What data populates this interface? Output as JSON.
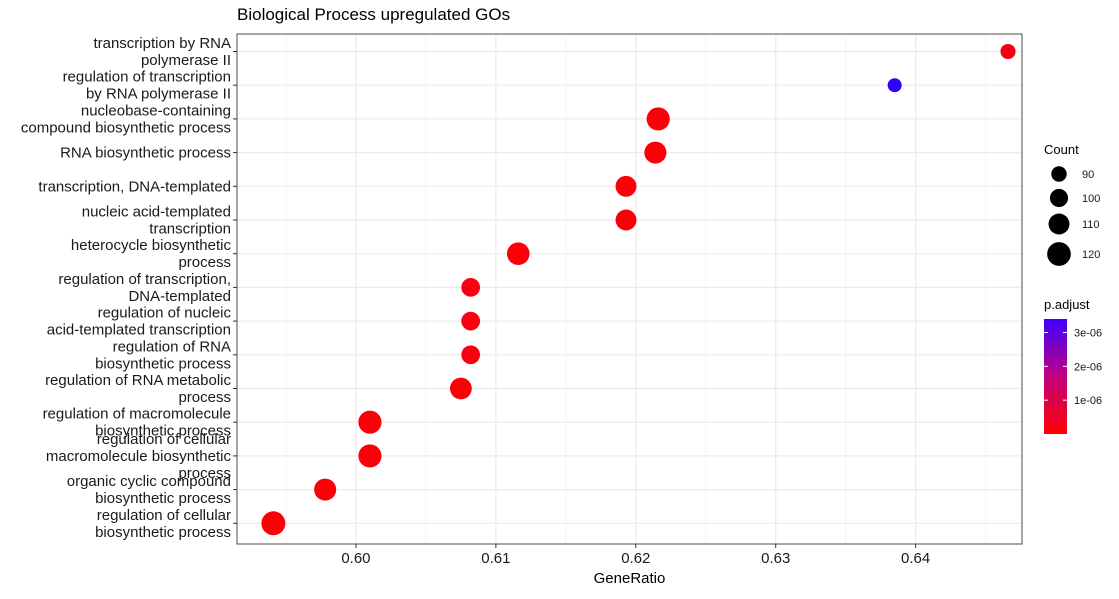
{
  "chart_data": {
    "type": "scatter",
    "title": "Biological Process upregulated GOs",
    "xlabel": "GeneRatio",
    "ylabel": "",
    "xlim": [
      0.5915,
      0.6476
    ],
    "x_ticks": [
      0.6,
      0.61,
      0.62,
      0.63,
      0.64
    ],
    "x_tick_labels": [
      "0.60",
      "0.61",
      "0.62",
      "0.63",
      "0.64"
    ],
    "grid": true,
    "legend_position": "right",
    "categories": [
      [
        "transcription by RNA",
        "polymerase II"
      ],
      [
        "regulation of transcription",
        "by RNA polymerase II"
      ],
      [
        "nucleobase-containing",
        "compound biosynthetic process"
      ],
      [
        "RNA biosynthetic process"
      ],
      [
        "transcription, DNA-templated"
      ],
      [
        "nucleic acid-templated",
        "transcription"
      ],
      [
        "heterocycle biosynthetic",
        "process"
      ],
      [
        "regulation of transcription,",
        "DNA-templated"
      ],
      [
        "regulation of nucleic",
        "acid-templated transcription"
      ],
      [
        "regulation of RNA",
        "biosynthetic process"
      ],
      [
        "regulation of RNA metabolic",
        "process"
      ],
      [
        "regulation of macromolecule",
        "biosynthetic process"
      ],
      [
        "regulation of cellular",
        "macromolecule biosynthetic",
        "process"
      ],
      [
        "organic cyclic compound",
        "biosynthetic process"
      ],
      [
        "regulation of cellular",
        "biosynthetic process"
      ]
    ],
    "x": [
      0.6466,
      0.6385,
      0.6216,
      0.6214,
      0.6193,
      0.6193,
      0.6116,
      0.6082,
      0.6082,
      0.6082,
      0.6075,
      0.601,
      0.601,
      0.5978,
      0.5941
    ],
    "count": [
      89,
      85,
      118,
      114,
      110,
      110,
      116,
      102,
      102,
      102,
      113,
      118,
      118,
      114,
      121
    ],
    "p_adjust": [
      3e-07,
      3.3e-06,
      1e-07,
      1e-07,
      1e-07,
      1e-07,
      1e-07,
      2e-07,
      2e-07,
      2e-07,
      1e-07,
      1e-07,
      1e-07,
      1e-07,
      1e-07
    ],
    "size_legend": {
      "title": "Count",
      "values": [
        90,
        100,
        110,
        120
      ],
      "labels": [
        "90",
        "100",
        "110",
        "120"
      ]
    },
    "color_legend": {
      "title": "p.adjust",
      "range": [
        0,
        3.4e-06
      ],
      "ticks": [
        1e-06,
        2e-06,
        3e-06
      ],
      "tick_labels": [
        "1e-06",
        "2e-06",
        "3e-06"
      ],
      "low_color": "#ff0000",
      "high_color": "#0000ff"
    }
  }
}
